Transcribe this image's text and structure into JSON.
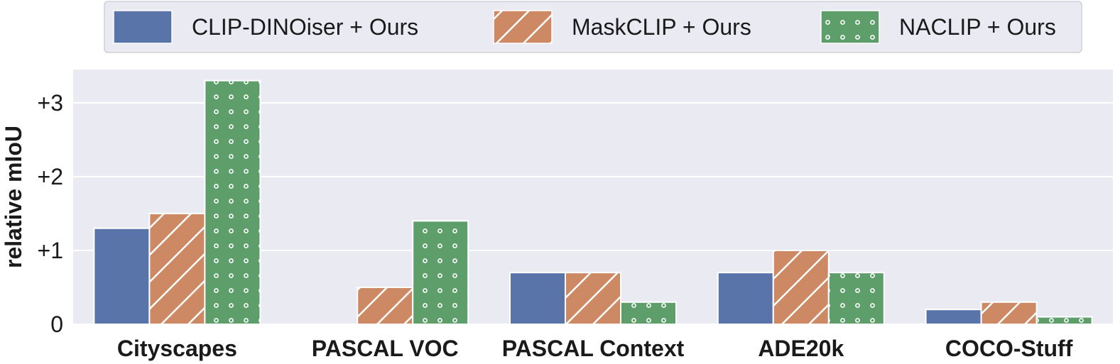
{
  "chart_data": {
    "type": "bar",
    "title": "",
    "xlabel": "",
    "ylabel": "relative mIoU",
    "ylim": [
      0,
      3.45
    ],
    "yticks": [
      {
        "value": 0,
        "label": "0"
      },
      {
        "value": 1,
        "label": "+1"
      },
      {
        "value": 2,
        "label": "+2"
      },
      {
        "value": 3,
        "label": "+3"
      }
    ],
    "categories": [
      "Cityscapes",
      "PASCAL VOC",
      "PASCAL Context",
      "ADE20k",
      "COCO-Stuff"
    ],
    "series": [
      {
        "name": "CLIP-DINOiser + Ours",
        "values": [
          1.3,
          0.0,
          0.7,
          0.7,
          0.2
        ],
        "color": "#5874a8",
        "pattern": "solid"
      },
      {
        "name": "MaskCLIP + Ours",
        "values": [
          1.5,
          0.5,
          0.7,
          1.0,
          0.3
        ],
        "color": "#cd8864",
        "pattern": "hatch"
      },
      {
        "name": "NACLIP + Ours",
        "values": [
          3.3,
          1.4,
          0.3,
          0.7,
          0.1
        ],
        "color": "#5d9e6b",
        "pattern": "dots"
      }
    ],
    "grid": true,
    "legend_position": "top",
    "background_color": "#eaeaf2"
  }
}
